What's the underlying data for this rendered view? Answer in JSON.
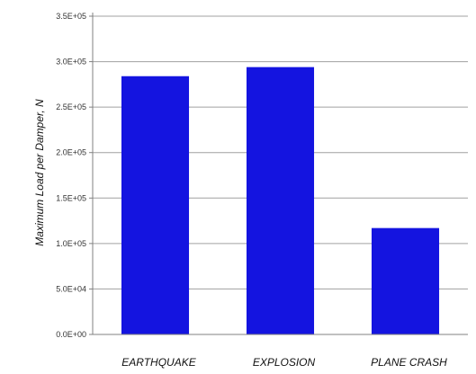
{
  "chart_data": {
    "type": "bar",
    "categories": [
      "EARTHQUAKE",
      "EXPLOSION",
      "PLANE CRASH"
    ],
    "values": [
      284000,
      294000,
      117000
    ],
    "ylabel": "Maximum Load per Damper, N",
    "xlabel": "",
    "ylim": [
      0,
      350000
    ],
    "yticks": [
      0,
      50000,
      100000,
      150000,
      200000,
      250000,
      300000,
      350000
    ],
    "ytick_labels": [
      "0.0E+00",
      "5.0E+04",
      "1.0E+05",
      "1.5E+05",
      "2.0E+05",
      "2.5E+05",
      "3.0E+05",
      "3.5E+05"
    ],
    "grid": true,
    "legend": "none",
    "colors": {
      "bar": "#1414e0",
      "grid": "#a0a0a0",
      "axis": "#808080"
    }
  }
}
